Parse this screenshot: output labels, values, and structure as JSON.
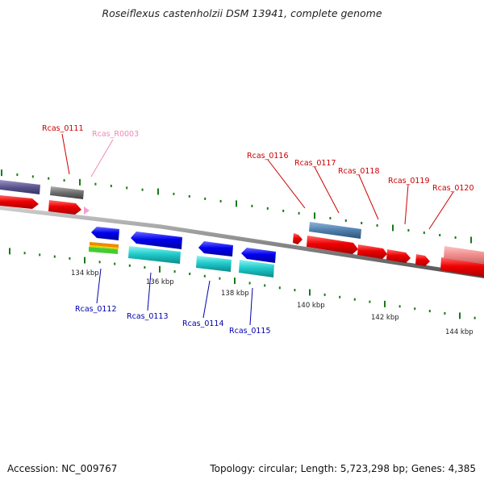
{
  "title": "Roseiflexus castenholzii DSM 13941, complete genome",
  "footer": {
    "accession": "Accession: NC_009767",
    "summary": "Topology: circular; Length: 5,723,298 bp; Genes: 4,385"
  },
  "colors": {
    "forward_label": "#cc0000",
    "reverse_label": "#0000aa",
    "rna_label": "#ee88bb",
    "tick_mark": "#1a7a1a",
    "backbone": "#888888"
  },
  "ticks": [
    "134 kbp",
    "136 kbp",
    "138 kbp",
    "140 kbp",
    "142 kbp",
    "144 kbp"
  ],
  "labels": {
    "forward": [
      "Rcas_0111",
      "Rcas_0116",
      "Rcas_0117",
      "Rcas_0118",
      "Rcas_0119",
      "Rcas_0120"
    ],
    "rna": [
      "Rcas_R0003"
    ],
    "reverse": [
      "Rcas_0112",
      "Rcas_0113",
      "Rcas_0114",
      "Rcas_0115"
    ]
  }
}
